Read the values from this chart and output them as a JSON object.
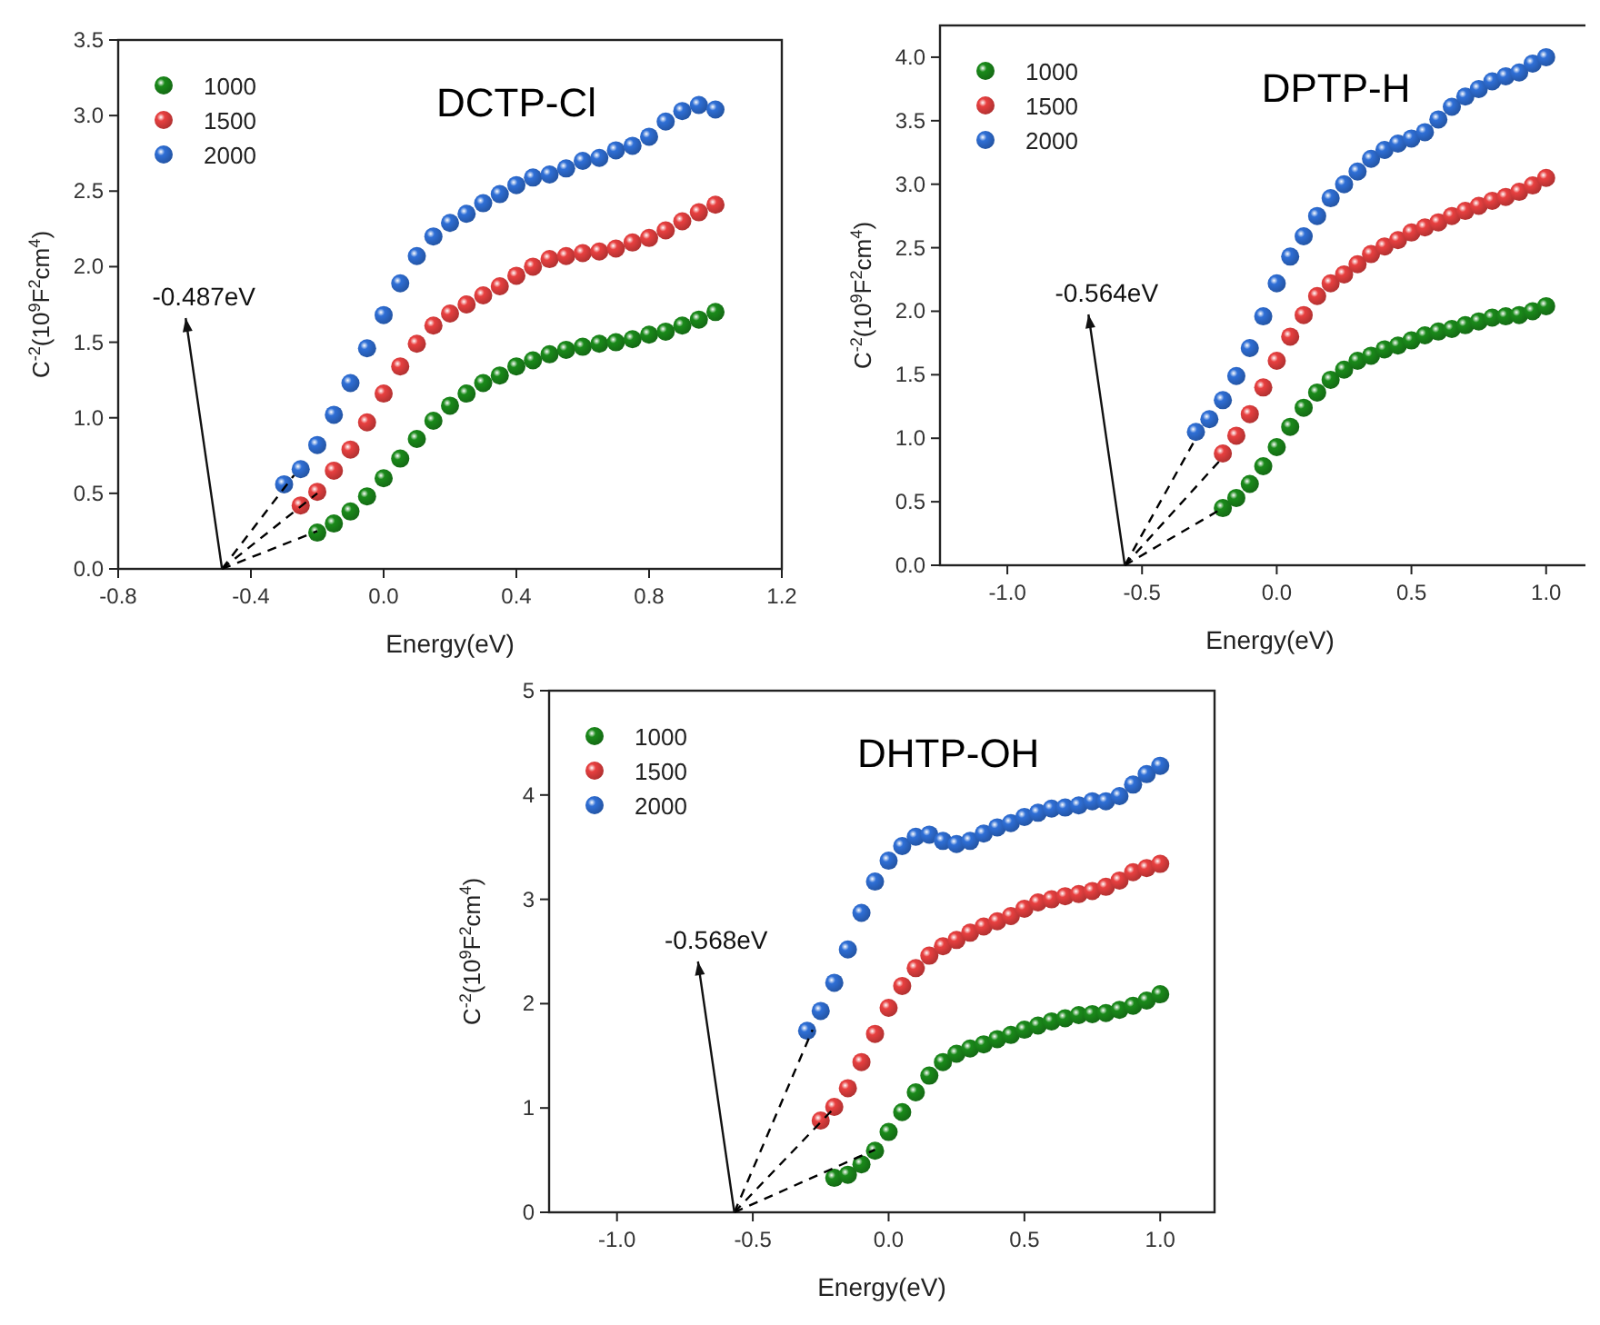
{
  "chart_data": [
    {
      "type": "scatter",
      "title": "DCTP-Cl",
      "xlabel": "Energy(eV)",
      "ylabel": "C$^{-2}$(10$^{9}$F$^{2}$cm$^{4}$)",
      "xlim": [
        -0.8,
        1.2
      ],
      "ylim": [
        0,
        3.5
      ],
      "xticks": [
        {
          "value": -0.8,
          "label": "-0.8"
        },
        {
          "value": -0.4,
          "label": "-0.4"
        },
        {
          "value": 0,
          "label": "0.0"
        },
        {
          "value": 0.4,
          "label": "0.4"
        },
        {
          "value": 0.8,
          "label": "0.8"
        },
        {
          "value": 1.2,
          "label": "1.2"
        }
      ],
      "yticks": [
        {
          "value": 0,
          "label": "0.0"
        },
        {
          "value": 0.5,
          "label": "0.5"
        },
        {
          "value": 1,
          "label": "1.0"
        },
        {
          "value": 1.5,
          "label": "1.5"
        },
        {
          "value": 2,
          "label": "2.0"
        },
        {
          "value": 2.5,
          "label": "2.5"
        },
        {
          "value": 3,
          "label": "3.0"
        },
        {
          "value": 3.5,
          "label": "3.5"
        }
      ],
      "legend": "top left",
      "marker": "circle",
      "grid": false,
      "annotations": [
        {
          "text": "-0.487eV",
          "x": -0.487,
          "y": 0
        }
      ],
      "series": [
        {
          "name": "1000",
          "color": "#1a8a1a",
          "x": [
            -0.2,
            -0.15,
            -0.1,
            -0.05,
            0,
            0.05,
            0.1,
            0.15,
            0.2,
            0.25,
            0.3,
            0.35,
            0.4,
            0.45,
            0.5,
            0.55,
            0.6,
            0.65,
            0.7,
            0.75,
            0.8,
            0.85,
            0.9,
            0.95,
            1.0
          ],
          "values": [
            0.24,
            0.3,
            0.38,
            0.48,
            0.6,
            0.73,
            0.86,
            0.98,
            1.08,
            1.16,
            1.23,
            1.28,
            1.34,
            1.38,
            1.42,
            1.45,
            1.47,
            1.49,
            1.5,
            1.52,
            1.55,
            1.57,
            1.61,
            1.65,
            1.7
          ]
        },
        {
          "name": "1500",
          "color": "#e84040",
          "x": [
            -0.25,
            -0.2,
            -0.15,
            -0.1,
            -0.05,
            0,
            0.05,
            0.1,
            0.15,
            0.2,
            0.25,
            0.3,
            0.35,
            0.4,
            0.45,
            0.5,
            0.55,
            0.6,
            0.65,
            0.7,
            0.75,
            0.8,
            0.85,
            0.9,
            0.95,
            1.0
          ],
          "values": [
            0.42,
            0.51,
            0.65,
            0.79,
            0.97,
            1.16,
            1.34,
            1.49,
            1.61,
            1.69,
            1.75,
            1.81,
            1.87,
            1.94,
            2.0,
            2.05,
            2.07,
            2.09,
            2.1,
            2.12,
            2.16,
            2.19,
            2.24,
            2.3,
            2.36,
            2.41
          ]
        },
        {
          "name": "2000",
          "color": "#2f6fd6",
          "x": [
            -0.3,
            -0.25,
            -0.2,
            -0.15,
            -0.1,
            -0.05,
            0,
            0.05,
            0.1,
            0.15,
            0.2,
            0.25,
            0.3,
            0.35,
            0.4,
            0.45,
            0.5,
            0.55,
            0.6,
            0.65,
            0.7,
            0.75,
            0.8,
            0.85,
            0.9,
            0.95,
            1.0
          ],
          "values": [
            0.56,
            0.66,
            0.82,
            1.02,
            1.23,
            1.46,
            1.68,
            1.89,
            2.07,
            2.2,
            2.29,
            2.35,
            2.42,
            2.48,
            2.54,
            2.59,
            2.61,
            2.65,
            2.7,
            2.72,
            2.77,
            2.8,
            2.86,
            2.96,
            3.03,
            3.07,
            3.04
          ]
        },
        {
          "type": "line",
          "color": "#000000",
          "line_style": "dashed",
          "marker": "none",
          "x": [
            -0.487,
            -0.2
          ],
          "values": [
            0,
            0.25
          ]
        },
        {
          "type": "line",
          "color": "#000000",
          "line_style": "dashed",
          "marker": "none",
          "x": [
            -0.487,
            -0.2
          ],
          "values": [
            0,
            0.5
          ]
        },
        {
          "type": "line",
          "color": "#000000",
          "line_style": "dashed",
          "marker": "none",
          "x": [
            -0.487,
            -0.27
          ],
          "values": [
            0,
            0.62
          ]
        }
      ]
    },
    {
      "type": "scatter",
      "title": "DPTP-H",
      "xlabel": "Energy(eV)",
      "ylabel": "C$^{-2}$(10$^{9}$F$^{2}$cm$^{4}$)",
      "xlim": [
        -1.25,
        1.2
      ],
      "ylim": [
        0,
        4.25
      ],
      "xticks": [
        {
          "value": -1,
          "label": "-1.0"
        },
        {
          "value": -0.5,
          "label": "-0.5"
        },
        {
          "value": 0,
          "label": "0.0"
        },
        {
          "value": 0.5,
          "label": "0.5"
        },
        {
          "value": 1,
          "label": "1.0"
        }
      ],
      "yticks": [
        {
          "value": 0,
          "label": "0.0"
        },
        {
          "value": 0.5,
          "label": "0.5"
        },
        {
          "value": 1,
          "label": "1.0"
        },
        {
          "value": 1.5,
          "label": "1.5"
        },
        {
          "value": 2,
          "label": "2.0"
        },
        {
          "value": 2.5,
          "label": "2.5"
        },
        {
          "value": 3,
          "label": "3.0"
        },
        {
          "value": 3.5,
          "label": "3.5"
        },
        {
          "value": 4,
          "label": "4.0"
        }
      ],
      "legend": "top left",
      "marker": "circle",
      "grid": false,
      "annotations": [
        {
          "text": "-0.564eV",
          "x": -0.564,
          "y": 0
        }
      ],
      "series": [
        {
          "name": "1000",
          "color": "#1a8a1a",
          "x": [
            -0.2,
            -0.15,
            -0.1,
            -0.05,
            0,
            0.05,
            0.1,
            0.15,
            0.2,
            0.25,
            0.3,
            0.35,
            0.4,
            0.45,
            0.5,
            0.55,
            0.6,
            0.65,
            0.7,
            0.75,
            0.8,
            0.85,
            0.9,
            0.95,
            1.0
          ],
          "values": [
            0.45,
            0.53,
            0.64,
            0.78,
            0.93,
            1.09,
            1.24,
            1.36,
            1.46,
            1.54,
            1.61,
            1.65,
            1.7,
            1.73,
            1.77,
            1.81,
            1.84,
            1.86,
            1.89,
            1.92,
            1.95,
            1.96,
            1.97,
            2.0,
            2.04
          ]
        },
        {
          "name": "1500",
          "color": "#e84040",
          "x": [
            -0.2,
            -0.15,
            -0.1,
            -0.05,
            0,
            0.05,
            0.1,
            0.15,
            0.2,
            0.25,
            0.3,
            0.35,
            0.4,
            0.45,
            0.5,
            0.55,
            0.6,
            0.65,
            0.7,
            0.75,
            0.8,
            0.85,
            0.9,
            0.95,
            1.0
          ],
          "values": [
            0.88,
            1.02,
            1.19,
            1.4,
            1.61,
            1.8,
            1.97,
            2.12,
            2.22,
            2.29,
            2.37,
            2.45,
            2.51,
            2.56,
            2.62,
            2.66,
            2.7,
            2.75,
            2.79,
            2.83,
            2.87,
            2.9,
            2.94,
            2.99,
            3.05
          ]
        },
        {
          "name": "2000",
          "color": "#2f6fd6",
          "x": [
            -0.3,
            -0.25,
            -0.2,
            -0.15,
            -0.1,
            -0.05,
            0,
            0.05,
            0.1,
            0.15,
            0.2,
            0.25,
            0.3,
            0.35,
            0.4,
            0.45,
            0.5,
            0.55,
            0.6,
            0.65,
            0.7,
            0.75,
            0.8,
            0.85,
            0.9,
            0.95,
            1.0
          ],
          "values": [
            1.05,
            1.15,
            1.3,
            1.49,
            1.71,
            1.96,
            2.22,
            2.43,
            2.59,
            2.75,
            2.89,
            3.0,
            3.1,
            3.2,
            3.27,
            3.32,
            3.36,
            3.41,
            3.51,
            3.61,
            3.69,
            3.75,
            3.81,
            3.85,
            3.88,
            3.95,
            4.0
          ]
        },
        {
          "type": "line",
          "color": "#000000",
          "line_style": "dashed",
          "marker": "none",
          "x": [
            -0.564,
            -0.2
          ],
          "values": [
            0,
            0.45
          ]
        },
        {
          "type": "line",
          "color": "#000000",
          "line_style": "dashed",
          "marker": "none",
          "x": [
            -0.564,
            -0.2
          ],
          "values": [
            0,
            0.85
          ]
        },
        {
          "type": "line",
          "color": "#000000",
          "line_style": "dashed",
          "marker": "none",
          "x": [
            -0.564,
            -0.3
          ],
          "values": [
            0,
            1.0
          ]
        }
      ]
    },
    {
      "type": "scatter",
      "title": "DHTP-OH",
      "xlabel": "Energy(eV)",
      "ylabel": "C$^{-2}$(10$^{9}$F$^{2}$cm$^{4}$)",
      "xlim": [
        -1.25,
        1.2
      ],
      "ylim": [
        0,
        5
      ],
      "xticks": [
        {
          "value": -1,
          "label": "-1.0"
        },
        {
          "value": -0.5,
          "label": "-0.5"
        },
        {
          "value": 0,
          "label": "0.0"
        },
        {
          "value": 0.5,
          "label": "0.5"
        },
        {
          "value": 1,
          "label": "1.0"
        }
      ],
      "yticks": [
        0,
        1,
        2,
        3,
        4,
        5
      ],
      "legend": "top left",
      "marker": "circle",
      "grid": false,
      "annotations": [
        {
          "text": "-0.568eV",
          "x": -0.568,
          "y": 0
        }
      ],
      "series": [
        {
          "name": "1000",
          "color": "#1a8a1a",
          "x": [
            -0.2,
            -0.15,
            -0.1,
            -0.05,
            0,
            0.05,
            0.1,
            0.15,
            0.2,
            0.25,
            0.3,
            0.35,
            0.4,
            0.45,
            0.5,
            0.55,
            0.6,
            0.65,
            0.7,
            0.75,
            0.8,
            0.85,
            0.9,
            0.95,
            1.0
          ],
          "values": [
            0.33,
            0.36,
            0.46,
            0.59,
            0.77,
            0.96,
            1.15,
            1.31,
            1.44,
            1.52,
            1.57,
            1.61,
            1.66,
            1.7,
            1.75,
            1.79,
            1.83,
            1.86,
            1.89,
            1.9,
            1.91,
            1.94,
            1.98,
            2.03,
            2.09
          ]
        },
        {
          "name": "1500",
          "color": "#e84040",
          "x": [
            -0.25,
            -0.2,
            -0.15,
            -0.1,
            -0.05,
            0,
            0.05,
            0.1,
            0.15,
            0.2,
            0.25,
            0.3,
            0.35,
            0.4,
            0.45,
            0.5,
            0.55,
            0.6,
            0.65,
            0.7,
            0.75,
            0.8,
            0.85,
            0.9,
            0.95,
            1.0
          ],
          "values": [
            0.88,
            1.01,
            1.19,
            1.44,
            1.71,
            1.96,
            2.17,
            2.34,
            2.46,
            2.55,
            2.61,
            2.68,
            2.74,
            2.79,
            2.84,
            2.91,
            2.97,
            3.0,
            3.03,
            3.05,
            3.08,
            3.12,
            3.18,
            3.26,
            3.3,
            3.34
          ]
        },
        {
          "name": "2000",
          "color": "#2f6fd6",
          "x": [
            -0.3,
            -0.25,
            -0.2,
            -0.15,
            -0.1,
            -0.05,
            0,
            0.05,
            0.1,
            0.15,
            0.2,
            0.25,
            0.3,
            0.35,
            0.4,
            0.45,
            0.5,
            0.55,
            0.6,
            0.65,
            0.7,
            0.75,
            0.8,
            0.85,
            0.9,
            0.95,
            1.0
          ],
          "values": [
            1.74,
            1.93,
            2.2,
            2.52,
            2.87,
            3.17,
            3.37,
            3.51,
            3.6,
            3.62,
            3.56,
            3.53,
            3.56,
            3.63,
            3.69,
            3.73,
            3.79,
            3.83,
            3.87,
            3.88,
            3.9,
            3.94,
            3.94,
            3.99,
            4.1,
            4.2,
            4.28
          ]
        },
        {
          "type": "line",
          "color": "#000000",
          "line_style": "dashed",
          "marker": "none",
          "x": [
            -0.568,
            -0.05
          ],
          "values": [
            0,
            0.6
          ]
        },
        {
          "type": "line",
          "color": "#000000",
          "line_style": "dashed",
          "marker": "none",
          "x": [
            -0.568,
            -0.2
          ],
          "values": [
            0,
            1.0
          ]
        },
        {
          "type": "line",
          "color": "#000000",
          "line_style": "dashed",
          "marker": "none",
          "x": [
            -0.568,
            -0.28
          ],
          "values": [
            0,
            1.75
          ]
        }
      ]
    }
  ]
}
